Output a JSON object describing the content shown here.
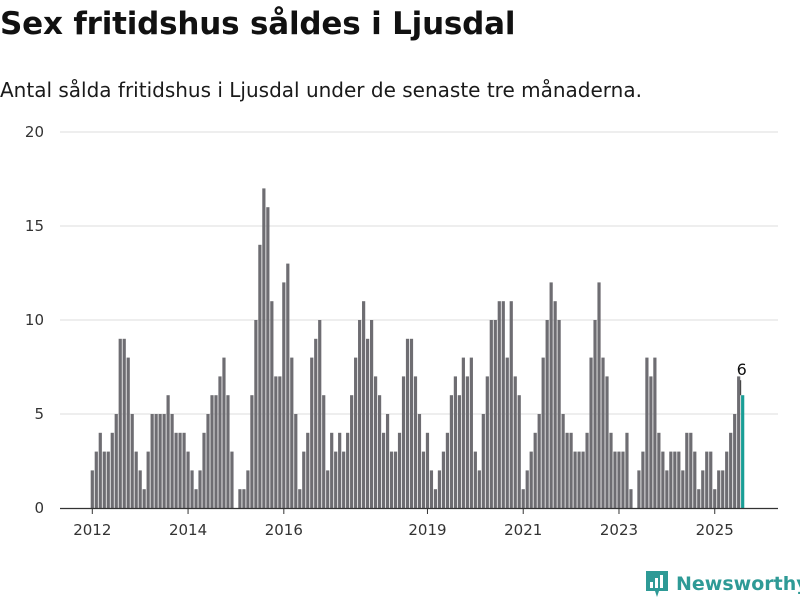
{
  "title": "Sex fritidshus såldes i Ljusdal",
  "subtitle": "Antal sålda fritidshus i Ljusdal under de senaste tre månaderna.",
  "brand": {
    "name": "Newsworthy",
    "icon": "newsworthy-logo-icon",
    "color": "#2e9a96"
  },
  "colors": {
    "bar": "#6e6d72",
    "highlight": "#1a9e96",
    "grid": "#dddddd",
    "axis": "#333333"
  },
  "chart_data": {
    "type": "bar",
    "title": "Sex fritidshus såldes i Ljusdal",
    "subtitle": "Antal sålda fritidshus i Ljusdal under de senaste tre månaderna.",
    "xlabel": "",
    "ylabel": "",
    "ylim": [
      0,
      20
    ],
    "yticks": [
      0,
      5,
      10,
      15,
      20
    ],
    "grid": true,
    "legend": "none",
    "x_start": "2012-01",
    "x_end": "2025-08",
    "x_unit": "month",
    "xticks": [
      {
        "label": "2012",
        "x": "2012-01"
      },
      {
        "label": "2014",
        "x": "2014-01"
      },
      {
        "label": "2016",
        "x": "2016-01"
      },
      {
        "label": "2019",
        "x": "2019-01"
      },
      {
        "label": "2021",
        "x": "2021-01"
      },
      {
        "label": "2023",
        "x": "2023-01"
      },
      {
        "label": "2025",
        "x": "2025-01"
      }
    ],
    "values": [
      2,
      3,
      4,
      3,
      3,
      4,
      5,
      9,
      9,
      8,
      5,
      3,
      2,
      1,
      3,
      5,
      5,
      5,
      5,
      6,
      5,
      4,
      4,
      4,
      3,
      2,
      1,
      2,
      4,
      5,
      6,
      6,
      7,
      8,
      6,
      3,
      0,
      1,
      1,
      2,
      6,
      10,
      14,
      17,
      16,
      11,
      7,
      7,
      12,
      13,
      8,
      5,
      1,
      3,
      4,
      8,
      9,
      10,
      6,
      2,
      4,
      3,
      4,
      3,
      4,
      6,
      8,
      10,
      11,
      9,
      10,
      7,
      6,
      4,
      5,
      3,
      3,
      4,
      7,
      9,
      9,
      7,
      5,
      3,
      4,
      2,
      1,
      2,
      3,
      4,
      6,
      7,
      6,
      8,
      7,
      8,
      3,
      2,
      5,
      7,
      10,
      10,
      11,
      11,
      8,
      11,
      7,
      6,
      1,
      2,
      3,
      4,
      5,
      8,
      10,
      12,
      11,
      10,
      5,
      4,
      4,
      3,
      3,
      3,
      4,
      8,
      10,
      12,
      8,
      7,
      4,
      3,
      3,
      3,
      4,
      1,
      0,
      2,
      3,
      8,
      7,
      8,
      4,
      3,
      2,
      3,
      3,
      3,
      2,
      4,
      4,
      3,
      1,
      2,
      3,
      3,
      1,
      2,
      2,
      3,
      4,
      5,
      7,
      6
    ],
    "highlight": {
      "x": "2025-08",
      "value": 6,
      "label": "6"
    }
  }
}
